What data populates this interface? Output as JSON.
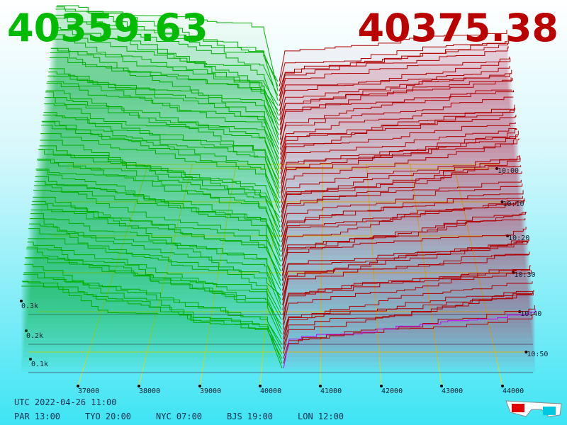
{
  "header": {
    "bid": "40359.63",
    "ask": "40375.38"
  },
  "price_axis": {
    "labels": [
      "37000",
      "38000",
      "39000",
      "40000",
      "41000",
      "42000",
      "43000",
      "44000"
    ]
  },
  "depth_axis": {
    "labels": [
      "0.1k",
      "0.2k",
      "0.3k"
    ]
  },
  "time_axis": {
    "labels": [
      "10:00",
      "10:10",
      "10:20",
      "10:30",
      "10:40",
      "10:50"
    ]
  },
  "footer": {
    "utc": "UTC 2022-04-26 11:00",
    "cities": [
      "PAR 13:00",
      "TYO 20:00",
      "NYC 07:00",
      "BJS 19:00",
      "LON 12:00"
    ]
  }
}
